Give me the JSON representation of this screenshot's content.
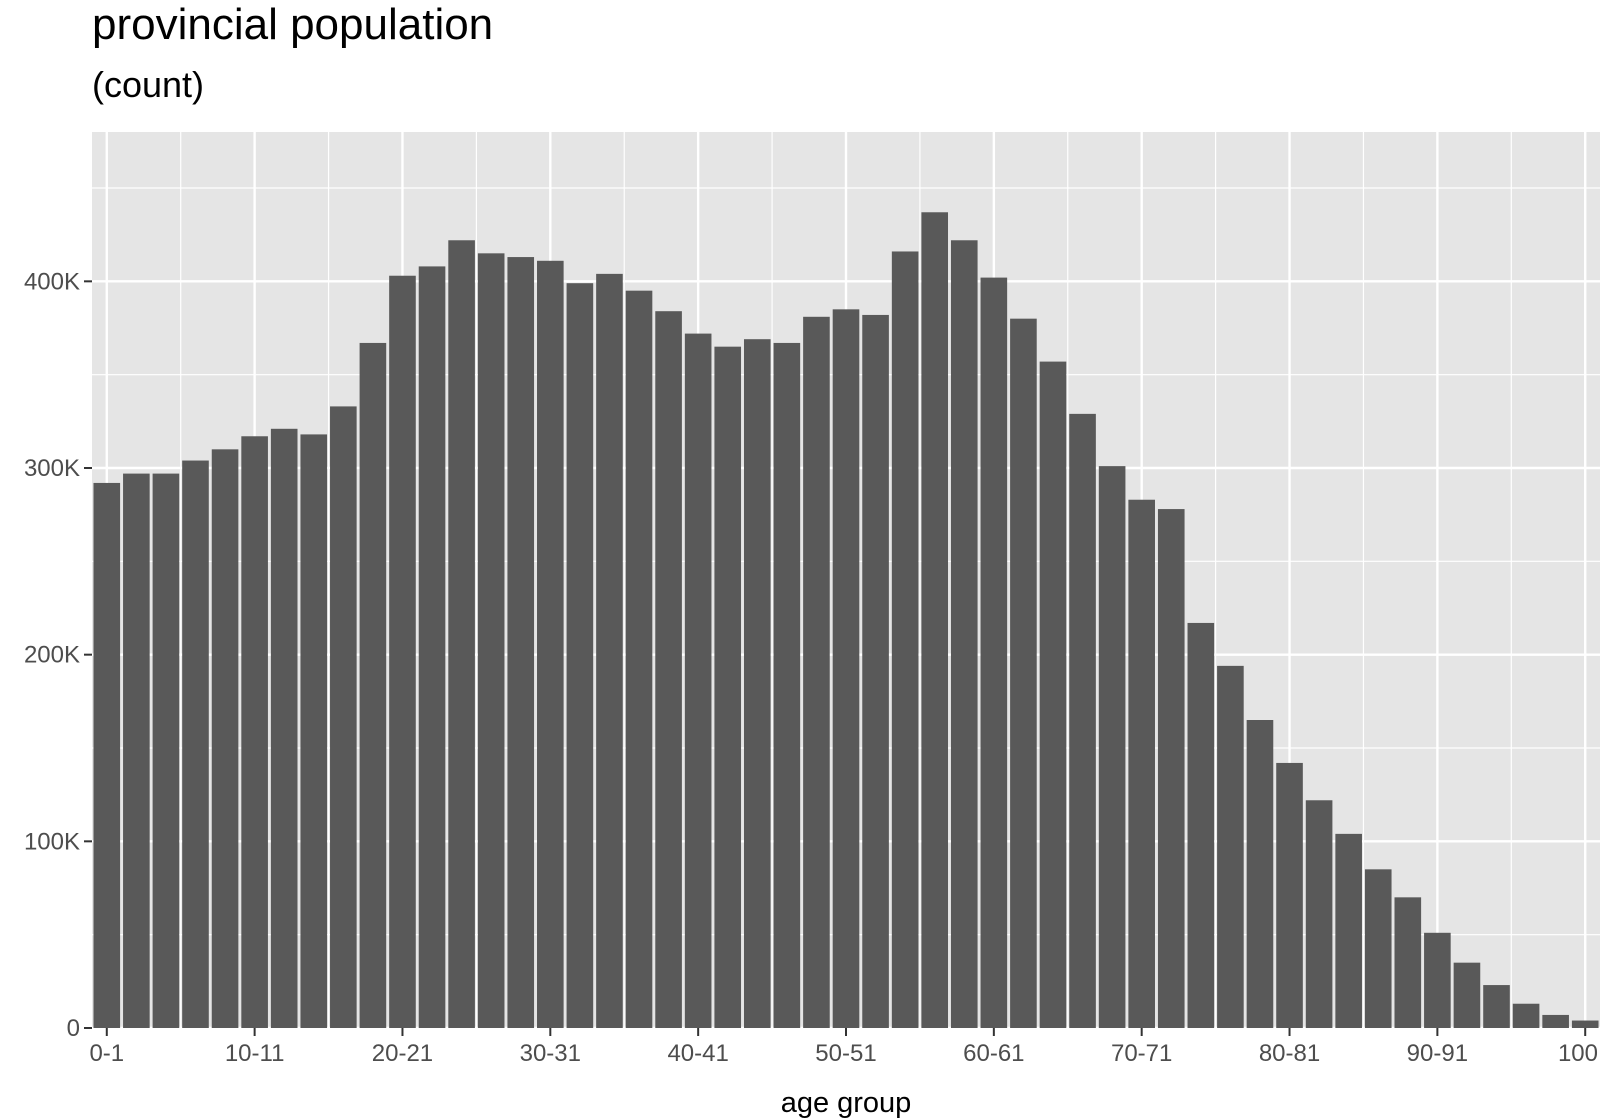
{
  "chart_data": {
    "type": "bar",
    "title": "provincial population",
    "subtitle": "(count)",
    "xlabel": "age group",
    "ylabel": "",
    "ylim": [
      0,
      480000
    ],
    "y_ticks": [
      0,
      100000,
      200000,
      300000,
      400000
    ],
    "y_tick_labels": [
      "0",
      "100K",
      "200K",
      "300K",
      "400K"
    ],
    "x_tick_labels": [
      "0-1",
      "10-11",
      "20-21",
      "30-31",
      "40-41",
      "50-51",
      "60-61",
      "70-71",
      "80-81",
      "90-91",
      "100"
    ],
    "grid": true,
    "bar_color": "#595959",
    "panel_color": "#e5e5e5",
    "categories": [
      "0-1",
      "2-3",
      "4-5",
      "6-7",
      "8-9",
      "10-11",
      "12-13",
      "14-15",
      "16-17",
      "18-19",
      "20-21",
      "22-23",
      "24-25",
      "26-27",
      "28-29",
      "30-31",
      "32-33",
      "34-35",
      "36-37",
      "38-39",
      "40-41",
      "42-43",
      "44-45",
      "46-47",
      "48-49",
      "50-51",
      "52-53",
      "54-55",
      "56-57",
      "58-59",
      "60-61",
      "62-63",
      "64-65",
      "66-67",
      "68-69",
      "70-71",
      "72-73",
      "74-75",
      "76-77",
      "78-79",
      "80-81",
      "82-83",
      "84-85",
      "86-87",
      "88-89",
      "90-91",
      "92-93",
      "94-95",
      "96-97",
      "98-99",
      "100"
    ],
    "values": [
      292000,
      297000,
      297000,
      304000,
      310000,
      317000,
      321000,
      318000,
      333000,
      367000,
      403000,
      408000,
      422000,
      415000,
      413000,
      411000,
      399000,
      404000,
      395000,
      384000,
      372000,
      365000,
      369000,
      367000,
      381000,
      385000,
      382000,
      416000,
      437000,
      422000,
      402000,
      380000,
      357000,
      329000,
      301000,
      283000,
      278000,
      217000,
      194000,
      165000,
      142000,
      122000,
      104000,
      85000,
      70000,
      51000,
      35000,
      23000,
      13000,
      7000,
      4000
    ]
  }
}
